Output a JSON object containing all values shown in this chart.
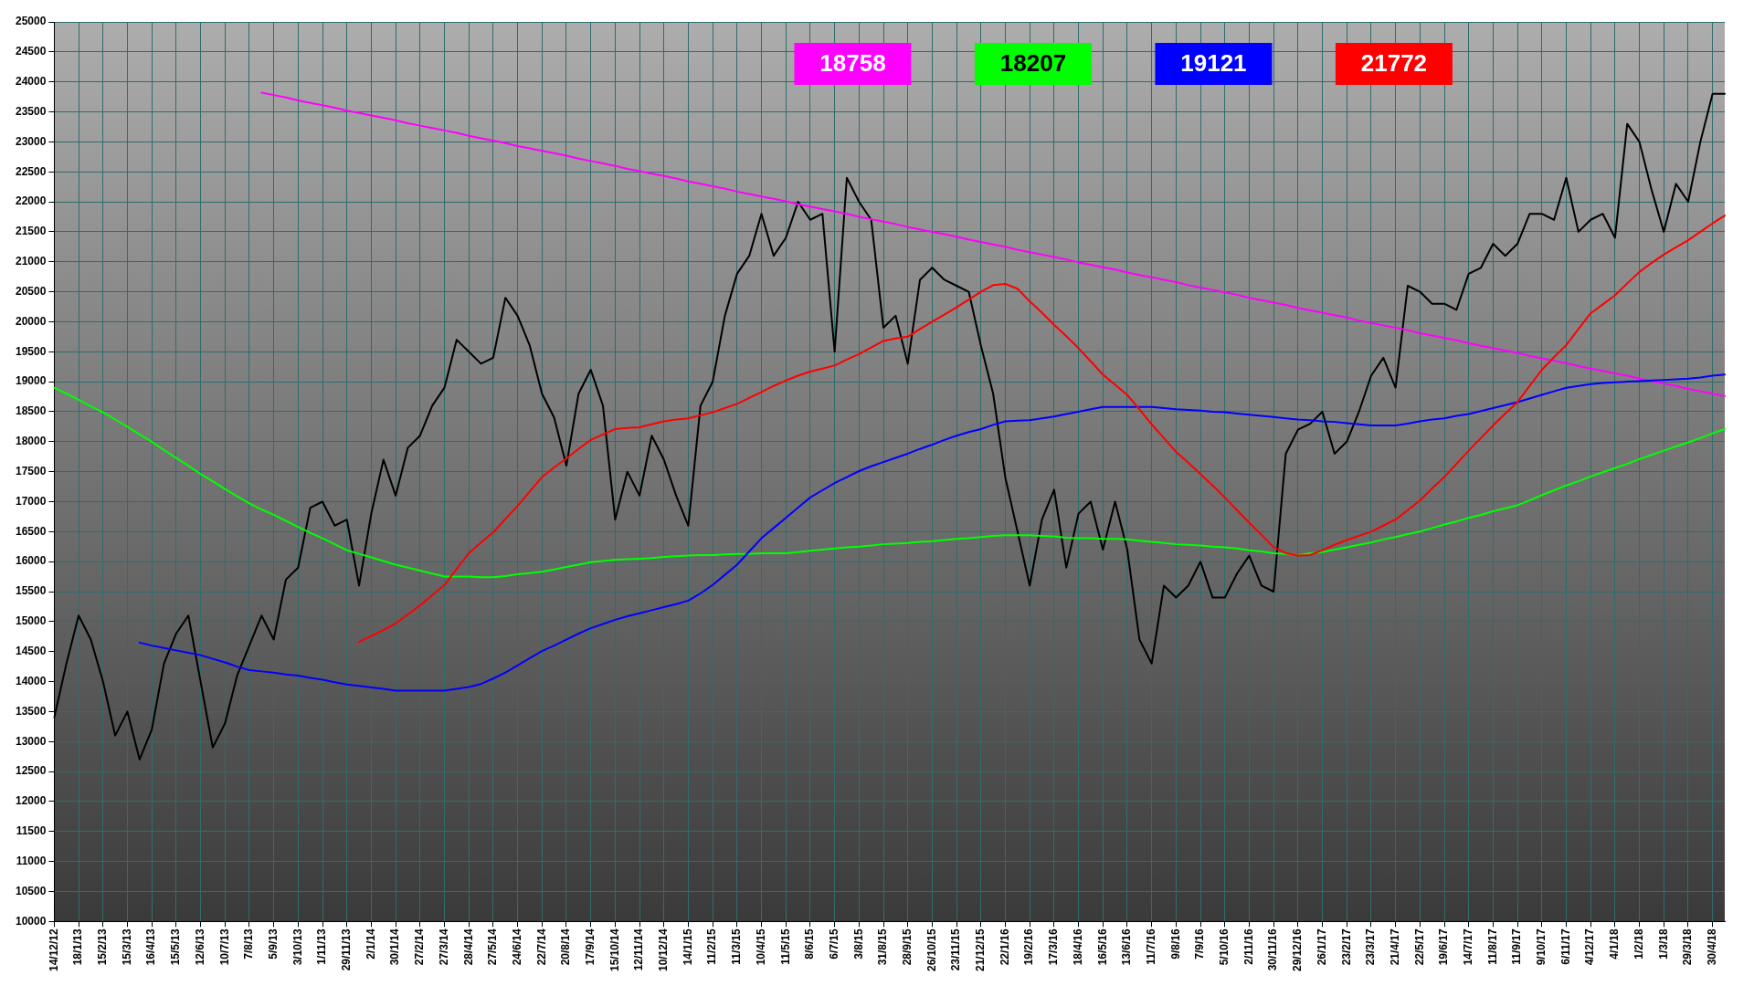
{
  "chart_data": {
    "type": "line",
    "categories": [
      "14/12/12",
      null,
      "18/1/13",
      null,
      "15/2/13",
      null,
      "15/3/13",
      null,
      "16/4/13",
      null,
      "15/5/13",
      null,
      "12/6/13",
      null,
      "10/7/13",
      null,
      "7/8/13",
      null,
      "5/9/13",
      null,
      "3/10/13",
      null,
      "1/11/13",
      null,
      "29/11/13",
      null,
      "2/1/14",
      null,
      "30/1/14",
      null,
      "27/2/14",
      null,
      "27/3/14",
      null,
      "28/4/14",
      null,
      "27/5/14",
      null,
      "24/6/14",
      null,
      "22/7/14",
      null,
      "20/8/14",
      null,
      "17/9/14",
      null,
      "15/10/14",
      null,
      "12/11/14",
      null,
      "10/12/14",
      null,
      "14/1/15",
      null,
      "11/2/15",
      null,
      "11/3/15",
      null,
      "10/4/15",
      null,
      "11/5/15",
      null,
      "8/6/15",
      null,
      "6/7/15",
      null,
      "3/8/15",
      null,
      "31/8/15",
      null,
      "28/9/15",
      null,
      "26/10/15",
      null,
      "23/11/15",
      null,
      "21/12/15",
      null,
      "22/1/16",
      null,
      "19/2/16",
      null,
      "17/3/16",
      null,
      "18/4/16",
      null,
      "16/5/16",
      null,
      "13/6/16",
      null,
      "11/7/16",
      null,
      "9/8/16",
      null,
      "7/9/16",
      null,
      "5/10/16",
      null,
      "2/11/16",
      null,
      "30/11/16",
      null,
      "29/12/16",
      null,
      "26/1/17",
      null,
      "23/2/17",
      null,
      "23/3/17",
      null,
      "21/4/17",
      null,
      "22/5/17",
      null,
      "19/6/17",
      null,
      "14/7/17",
      null,
      "11/8/17",
      null,
      "11/9/17",
      null,
      "9/10/17",
      null,
      "6/11/17",
      null,
      "4/12/17",
      null,
      "4/1/18",
      null,
      "1/2/18",
      null,
      "1/3/18",
      null,
      "29/3/18",
      null,
      "30/4/18",
      null
    ],
    "series": [
      {
        "color": "#000000",
        "values": [
          13400,
          14300,
          15100,
          14700,
          14000,
          13100,
          13500,
          12700,
          13200,
          14300,
          14800,
          15100,
          14000,
          12900,
          13300,
          14100,
          14600,
          15100,
          14700,
          15700,
          15900,
          16900,
          17000,
          16600,
          16700,
          15600,
          16800,
          17700,
          17100,
          17900,
          18100,
          18600,
          18900,
          19700,
          19500,
          19300,
          19400,
          20400,
          20100,
          19600,
          18800,
          18400,
          17600,
          18800,
          19200,
          18600,
          16700,
          17500,
          17100,
          18100,
          17700,
          17100,
          16600,
          18600,
          19000,
          20100,
          20800,
          21100,
          21800,
          21100,
          21400,
          22000,
          21700,
          21800,
          19500,
          22400,
          22000,
          21700,
          19900,
          20100,
          19300,
          20700,
          20900,
          20700,
          20600,
          20500,
          19600,
          18800,
          17400,
          16500,
          15600,
          16700,
          17200,
          15900,
          16800,
          17000,
          16200,
          17000,
          16200,
          14700,
          14300,
          15600,
          15400,
          15600,
          16000,
          15400,
          15400,
          15800,
          16100,
          15600,
          15500,
          17800,
          18200,
          18300,
          18500,
          17800,
          18000,
          18500,
          19100,
          19400,
          18900,
          20600,
          20500,
          20300,
          20300,
          20200,
          20800,
          20900,
          21300,
          21100,
          21300,
          21800,
          21800,
          21700,
          22400,
          21500,
          21700,
          21800,
          21400,
          23300,
          23000,
          22200,
          21500,
          22300,
          22000,
          23000,
          23800,
          23800
        ]
      },
      {
        "name": "18758",
        "color": "#ff00ff",
        "values": [
          null,
          null,
          null,
          null,
          null,
          null,
          null,
          null,
          null,
          null,
          null,
          null,
          null,
          null,
          null,
          null,
          null,
          23820,
          23780,
          23740,
          23690,
          23650,
          23610,
          23570,
          23520,
          23480,
          23440,
          23400,
          23360,
          23310,
          23270,
          23230,
          23190,
          23150,
          23100,
          23060,
          23020,
          22980,
          22930,
          22890,
          22850,
          22810,
          22770,
          22720,
          22680,
          22640,
          22600,
          22550,
          22510,
          22470,
          22430,
          22390,
          22340,
          22300,
          22260,
          22220,
          22170,
          22130,
          22090,
          22050,
          22010,
          21960,
          21920,
          21880,
          21840,
          21800,
          21750,
          21710,
          21670,
          21630,
          21580,
          21540,
          21500,
          21460,
          21420,
          21370,
          21330,
          21290,
          21250,
          21200,
          21160,
          21120,
          21080,
          21040,
          20990,
          20950,
          20910,
          20870,
          20820,
          20780,
          20740,
          20700,
          20660,
          20610,
          20570,
          20530,
          20490,
          20450,
          20400,
          20360,
          20320,
          20280,
          20230,
          20190,
          20150,
          20110,
          20070,
          20020,
          19980,
          19940,
          19900,
          19860,
          19810,
          19770,
          19730,
          19690,
          19640,
          19600,
          19560,
          19520,
          19480,
          19430,
          19390,
          19350,
          19310,
          19260,
          19220,
          19180,
          19140,
          19100,
          19050,
          19010,
          18970,
          18930,
          18880,
          18840,
          18800,
          18760
        ]
      },
      {
        "name": "18207",
        "color": "#00ff00",
        "values": [
          18900,
          18800,
          18700,
          18590,
          18490,
          18370,
          18250,
          18120,
          18000,
          17860,
          17730,
          17600,
          17460,
          17340,
          17210,
          17090,
          16970,
          16870,
          16780,
          16680,
          16580,
          16480,
          16390,
          16290,
          16190,
          16130,
          16070,
          16010,
          15950,
          15900,
          15850,
          15800,
          15750,
          15750,
          15750,
          15740,
          15740,
          15760,
          15790,
          15810,
          15830,
          15870,
          15910,
          15950,
          15990,
          16010,
          16030,
          16040,
          16050,
          16060,
          16080,
          16090,
          16100,
          16110,
          16110,
          16120,
          16130,
          16130,
          16140,
          16140,
          16140,
          16160,
          16180,
          16200,
          16220,
          16240,
          16250,
          16270,
          16290,
          16300,
          16310,
          16330,
          16340,
          16360,
          16380,
          16390,
          16410,
          16430,
          16440,
          16440,
          16440,
          16430,
          16420,
          16400,
          16390,
          16390,
          16380,
          16380,
          16370,
          16350,
          16330,
          16310,
          16290,
          16280,
          16270,
          16250,
          16240,
          16220,
          16190,
          16170,
          16140,
          16130,
          16110,
          16140,
          16160,
          16200,
          16240,
          16280,
          16320,
          16370,
          16410,
          16460,
          16500,
          16560,
          16620,
          16670,
          16730,
          16780,
          16840,
          16890,
          16940,
          17020,
          17110,
          17190,
          17270,
          17340,
          17420,
          17490,
          17560,
          17630,
          17710,
          17780,
          17850,
          17920,
          17990,
          18060,
          18140,
          18210
        ]
      },
      {
        "name": "19121",
        "color": "#0000ff",
        "values": [
          null,
          null,
          null,
          null,
          null,
          null,
          null,
          14650,
          14600,
          14560,
          14520,
          14480,
          14440,
          14380,
          14320,
          14250,
          14190,
          14170,
          14150,
          14120,
          14100,
          14060,
          14030,
          13990,
          13950,
          13930,
          13900,
          13880,
          13850,
          13850,
          13850,
          13850,
          13850,
          13880,
          13910,
          13960,
          14050,
          14150,
          14270,
          14390,
          14510,
          14600,
          14700,
          14800,
          14890,
          14960,
          15030,
          15090,
          15140,
          15190,
          15240,
          15290,
          15350,
          15470,
          15610,
          15780,
          15950,
          16170,
          16390,
          16560,
          16730,
          16900,
          17070,
          17190,
          17310,
          17410,
          17510,
          17590,
          17660,
          17730,
          17800,
          17880,
          17950,
          18030,
          18100,
          18160,
          18210,
          18280,
          18340,
          18350,
          18360,
          18390,
          18420,
          18460,
          18500,
          18540,
          18580,
          18580,
          18580,
          18580,
          18580,
          18560,
          18540,
          18530,
          18520,
          18500,
          18490,
          18470,
          18450,
          18430,
          18410,
          18390,
          18370,
          18360,
          18340,
          18330,
          18310,
          18290,
          18270,
          18270,
          18270,
          18300,
          18340,
          18370,
          18390,
          18430,
          18460,
          18510,
          18560,
          18610,
          18660,
          18720,
          18780,
          18840,
          18900,
          18930,
          18960,
          18980,
          18990,
          19000,
          19010,
          19020,
          19030,
          19040,
          19050,
          19070,
          19100,
          19120
        ]
      },
      {
        "name": "21772",
        "color": "#ff0000",
        "values": [
          null,
          null,
          null,
          null,
          null,
          null,
          null,
          null,
          null,
          null,
          null,
          null,
          null,
          null,
          null,
          null,
          null,
          null,
          null,
          null,
          null,
          null,
          null,
          null,
          null,
          14660,
          14760,
          14860,
          14970,
          15120,
          15270,
          15440,
          15610,
          15880,
          16140,
          16320,
          16490,
          16710,
          16930,
          17170,
          17410,
          17570,
          17720,
          17880,
          18030,
          18120,
          18210,
          18230,
          18240,
          18290,
          18340,
          18370,
          18390,
          18440,
          18490,
          18560,
          18630,
          18730,
          18830,
          18930,
          19020,
          19100,
          19170,
          19220,
          19270,
          19370,
          19460,
          19570,
          19680,
          19720,
          19750,
          19880,
          20000,
          20120,
          20240,
          20370,
          20500,
          20610,
          20630,
          20550,
          20340,
          20150,
          19950,
          19760,
          19560,
          19340,
          19120,
          18950,
          18780,
          18540,
          18290,
          18060,
          17830,
          17650,
          17460,
          17270,
          17070,
          16860,
          16650,
          16450,
          16240,
          16140,
          16100,
          16110,
          16190,
          16280,
          16360,
          16430,
          16500,
          16600,
          16700,
          16860,
          17020,
          17220,
          17410,
          17630,
          17850,
          18060,
          18270,
          18470,
          18660,
          18930,
          19200,
          19410,
          19610,
          19880,
          20140,
          20290,
          20440,
          20640,
          20830,
          20980,
          21120,
          21240,
          21360,
          21500,
          21640,
          21770
        ]
      }
    ],
    "ylim": [
      10000,
      25000
    ],
    "yticks": [
      10000,
      10500,
      11000,
      11500,
      12000,
      12500,
      13000,
      13500,
      14000,
      14500,
      15000,
      15500,
      16000,
      16500,
      17000,
      17500,
      18000,
      18500,
      19000,
      19500,
      20000,
      20500,
      21000,
      21500,
      22000,
      22500,
      23000,
      23500,
      24000,
      24500,
      25000
    ],
    "grid": true,
    "legend": "top"
  }
}
